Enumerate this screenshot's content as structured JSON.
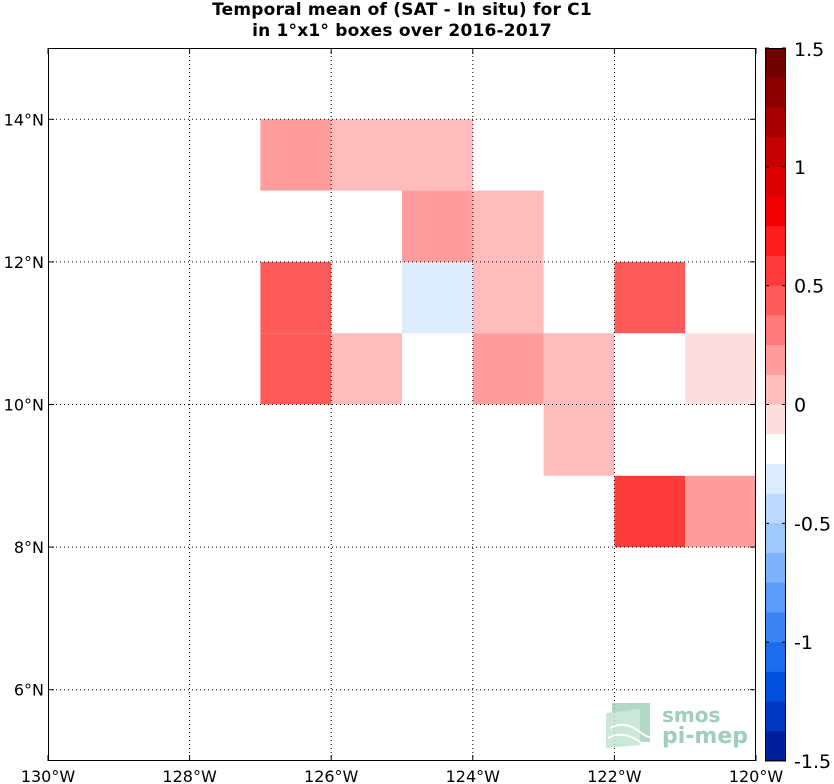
{
  "title": {
    "line1": "Temporal mean of (SAT - In situ) for C1",
    "line2": "in 1°x1° boxes over 2016-2017"
  },
  "chart_data": {
    "type": "heatmap",
    "x_ticks": [
      {
        "lon": -130,
        "label": "130°W"
      },
      {
        "lon": -128,
        "label": "128°W"
      },
      {
        "lon": -126,
        "label": "126°W"
      },
      {
        "lon": -124,
        "label": "124°W"
      },
      {
        "lon": -122,
        "label": "122°W"
      },
      {
        "lon": -120,
        "label": "120°W"
      }
    ],
    "y_ticks": [
      {
        "lat": 6,
        "label": "6°N"
      },
      {
        "lat": 8,
        "label": "8°N"
      },
      {
        "lat": 10,
        "label": "10°N"
      },
      {
        "lat": 12,
        "label": "12°N"
      },
      {
        "lat": 14,
        "label": "14°N"
      }
    ],
    "xlim": [
      -130,
      -120
    ],
    "ylim": [
      5,
      15
    ],
    "grid": true,
    "colorbar": {
      "min": -1.5,
      "max": 1.5,
      "levels": 24,
      "ticks": [
        {
          "value": 1.5,
          "label": "1.5"
        },
        {
          "value": 1,
          "label": "1"
        },
        {
          "value": 0.5,
          "label": "0.5"
        },
        {
          "value": 0,
          "label": "0"
        },
        {
          "value": -0.5,
          "label": "-0.5"
        },
        {
          "value": -1,
          "label": "-1"
        },
        {
          "value": -1.5,
          "label": "-1.5"
        }
      ],
      "colors_top_to_bottom": [
        "#6e0000",
        "#8a0000",
        "#a80000",
        "#c40000",
        "#dc0000",
        "#f00000",
        "#ff1c1c",
        "#ff3a3a",
        "#ff5a5a",
        "#ff7a7a",
        "#ff9c9c",
        "#ffbcbc",
        "#ffdede",
        "#ffffff",
        "#dcecfc",
        "#bcd8fc",
        "#9cc8fc",
        "#7cb4fc",
        "#5a9cf8",
        "#3a84f4",
        "#1c6cec",
        "#0050dc",
        "#0038c0",
        "#00209c"
      ]
    },
    "cells": [
      {
        "lon": -127,
        "lat": 13,
        "value": 0.25
      },
      {
        "lon": -126,
        "lat": 13,
        "value": 0.12
      },
      {
        "lon": -125,
        "lat": 13,
        "value": 0.12
      },
      {
        "lon": -125,
        "lat": 12,
        "value": 0.25
      },
      {
        "lon": -124,
        "lat": 12,
        "value": 0.12
      },
      {
        "lon": -127,
        "lat": 11,
        "value": 0.38
      },
      {
        "lon": -125,
        "lat": 11,
        "value": -0.25
      },
      {
        "lon": -124,
        "lat": 11,
        "value": 0.12
      },
      {
        "lon": -122,
        "lat": 11,
        "value": 0.38
      },
      {
        "lon": -127,
        "lat": 10,
        "value": 0.5
      },
      {
        "lon": -126,
        "lat": 10,
        "value": 0.12
      },
      {
        "lon": -124,
        "lat": 10,
        "value": 0.25
      },
      {
        "lon": -123,
        "lat": 10,
        "value": 0.12
      },
      {
        "lon": -121,
        "lat": 10,
        "value": -0.12
      },
      {
        "lon": -123,
        "lat": 9,
        "value": 0.12
      },
      {
        "lon": -122,
        "lat": 8,
        "value": 0.62
      },
      {
        "lon": -121,
        "lat": 8,
        "value": 0.25
      }
    ]
  },
  "logo": {
    "line1": "smos",
    "line2": "pi-mep"
  }
}
